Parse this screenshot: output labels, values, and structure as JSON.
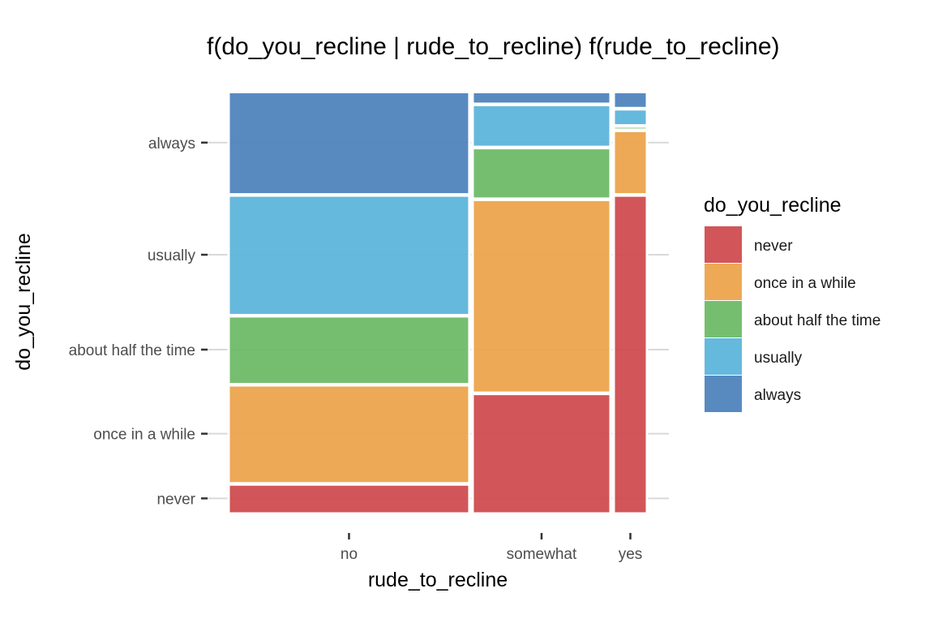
{
  "chart_data": {
    "type": "mosaic",
    "title": "f(do_you_recline | rude_to_recline) f(rude_to_recline)",
    "xlabel": "rude_to_recline",
    "ylabel": "do_you_recline",
    "x_categories": [
      {
        "name": "no",
        "proportion": 0.555
      },
      {
        "name": "somewhat",
        "proportion": 0.321
      },
      {
        "name": "yes",
        "proportion": 0.083
      }
    ],
    "y_categories": [
      "never",
      "once in a while",
      "about half the time",
      "usually",
      "always"
    ],
    "y_tick_labels": [
      "never",
      "once in a while",
      "about half the time",
      "usually",
      "always"
    ],
    "x_tick_labels": [
      "no",
      "somewhat",
      "yes"
    ],
    "cells": [
      {
        "x": "no",
        "values": {
          "never": 0.07,
          "once in a while": 0.23,
          "about half the time": 0.16,
          "usually": 0.28,
          "always": 0.24
        }
      },
      {
        "x": "somewhat",
        "values": {
          "never": 0.28,
          "once in a while": 0.45,
          "about half the time": 0.12,
          "usually": 0.1,
          "always": 0.03
        }
      },
      {
        "x": "yes",
        "values": {
          "never": 0.74,
          "once in a while": 0.15,
          "about half the time": 0.01,
          "usually": 0.04,
          "always": 0.04
        }
      }
    ],
    "legend": {
      "title": "do_you_recline",
      "position": "right",
      "entries": [
        "never",
        "once in a while",
        "about half the time",
        "usually",
        "always"
      ]
    },
    "colors": {
      "never": "#d04c50",
      "once in a while": "#eca44d",
      "about half the time": "#6fbb67",
      "usually": "#5db5db",
      "always": "#4f84bd"
    },
    "grid": true
  }
}
